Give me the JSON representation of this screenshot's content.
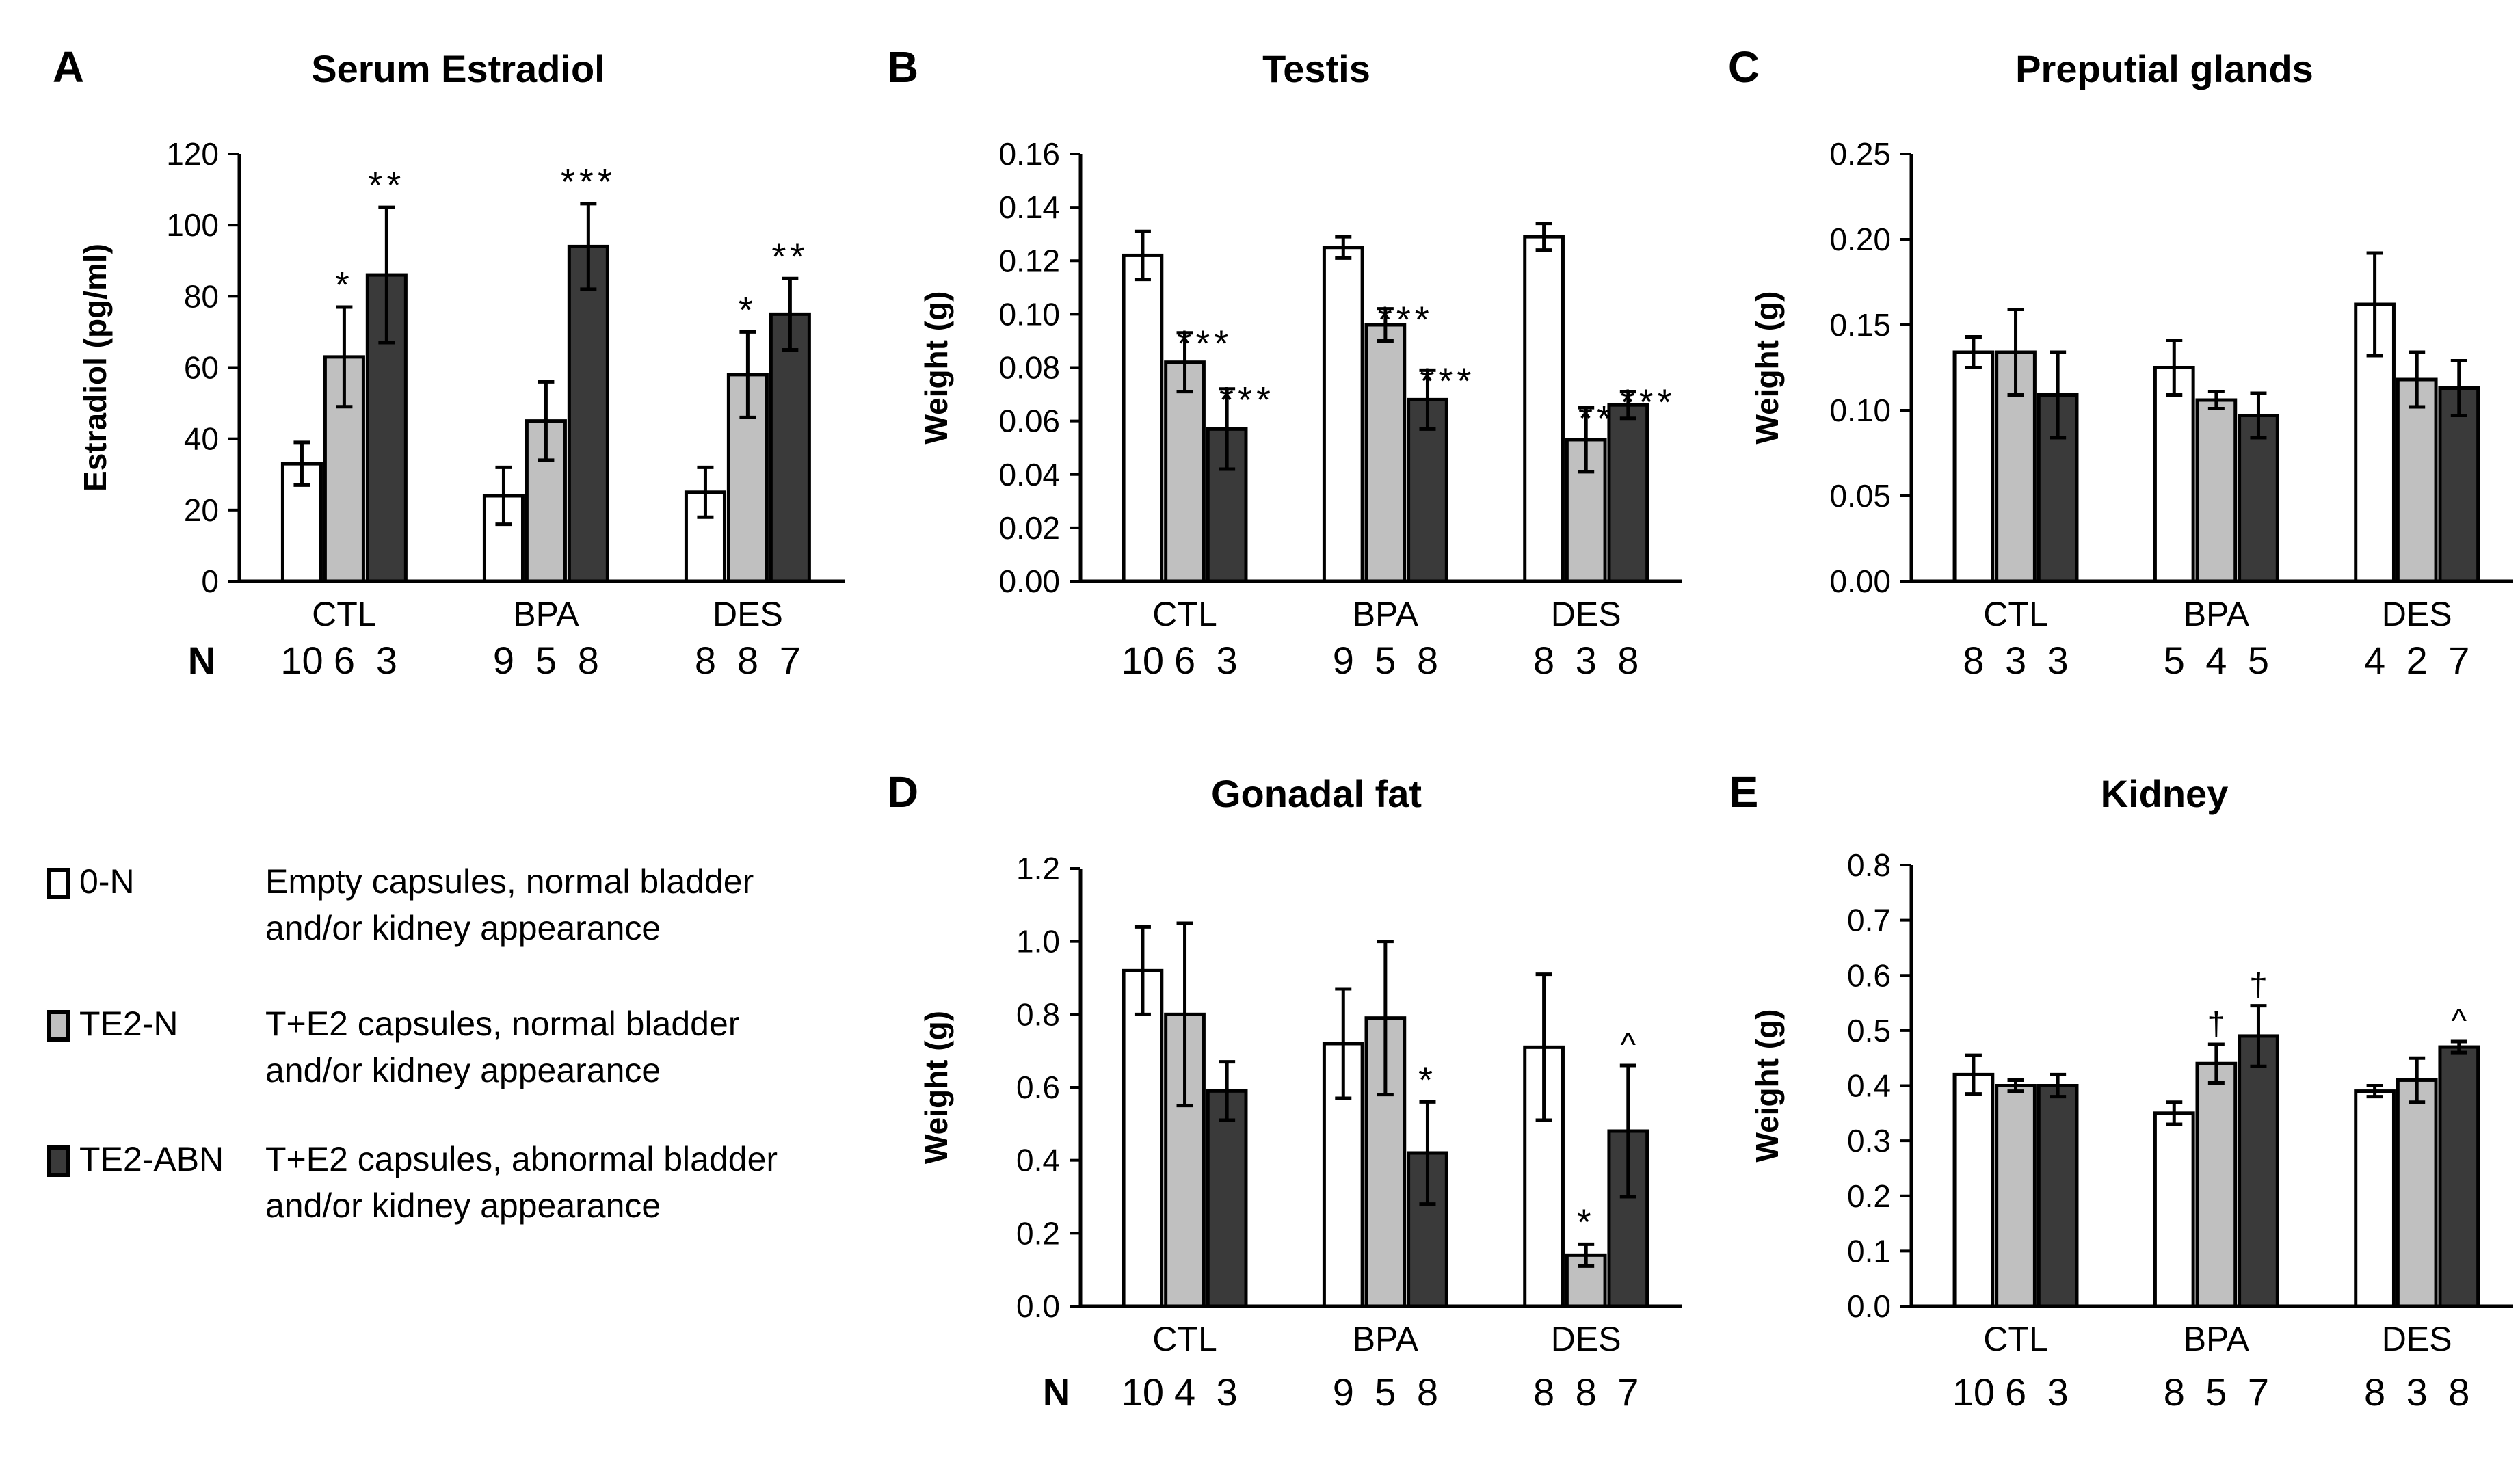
{
  "colors": {
    "zero_n": "#ffffff",
    "te2_n": "#c0c0c0",
    "te2_abn": "#3a3a3a",
    "axis": "#000000"
  },
  "n_row_label": "N",
  "legend": [
    {
      "key": "0-N",
      "color": "#ffffff",
      "description": "Empty capsules, normal bladder\nand/or kidney appearance"
    },
    {
      "key": "TE2-N",
      "color": "#c0c0c0",
      "description": "T+E2 capsules, normal bladder\nand/or kidney appearance"
    },
    {
      "key": "TE2-ABN",
      "color": "#3a3a3a",
      "description": "T+E2 capsules, abnormal bladder\nand/or kidney appearance"
    }
  ],
  "chart_data": [
    {
      "panel": "A",
      "type": "bar",
      "title": "Serum Estradiol",
      "ylabel": "Estradiol (pg/ml)",
      "ylim": [
        0,
        120
      ],
      "yticks": [
        "0",
        "20",
        "40",
        "60",
        "80",
        "100",
        "120"
      ],
      "ytick_values": [
        0,
        20,
        40,
        60,
        80,
        100,
        120
      ],
      "categories": [
        "CTL",
        "BPA",
        "DES"
      ],
      "series": [
        {
          "name": "0-N",
          "values": [
            33,
            24,
            25
          ],
          "errors": [
            6,
            8,
            7
          ],
          "annotations": [
            "",
            "",
            ""
          ]
        },
        {
          "name": "TE2-N",
          "values": [
            63,
            45,
            58
          ],
          "errors": [
            14,
            11,
            12
          ],
          "annotations": [
            "*",
            "",
            "*"
          ]
        },
        {
          "name": "TE2-ABN",
          "values": [
            86,
            94,
            75
          ],
          "errors": [
            19,
            12,
            10
          ],
          "annotations": [
            "**",
            "***",
            "**"
          ]
        }
      ],
      "show_n_label": true,
      "n": [
        [
          "10",
          "6",
          "3"
        ],
        [
          "9",
          "5",
          "8"
        ],
        [
          "8",
          "8",
          "7"
        ]
      ]
    },
    {
      "panel": "B",
      "type": "bar",
      "title": "Testis",
      "ylabel": "Weight (g)",
      "ylim": [
        0,
        0.16
      ],
      "yticks": [
        "0.00",
        "0.02",
        "0.04",
        "0.06",
        "0.08",
        "0.10",
        "0.12",
        "0.14",
        "0.16"
      ],
      "ytick_values": [
        0,
        0.02,
        0.04,
        0.06,
        0.08,
        0.1,
        0.12,
        0.14,
        0.16
      ],
      "categories": [
        "CTL",
        "BPA",
        "DES"
      ],
      "series": [
        {
          "name": "0-N",
          "values": [
            0.122,
            0.125,
            0.129
          ],
          "errors": [
            0.009,
            0.004,
            0.005
          ],
          "annotations": [
            "",
            "",
            ""
          ]
        },
        {
          "name": "TE2-N",
          "values": [
            0.082,
            0.096,
            0.053
          ],
          "errors": [
            0.011,
            0.006,
            0.012
          ],
          "annotations": [
            "***",
            "***",
            "***"
          ]
        },
        {
          "name": "TE2-ABN",
          "values": [
            0.057,
            0.068,
            0.066
          ],
          "errors": [
            0.015,
            0.011,
            0.005
          ],
          "annotations": [
            "***",
            "***",
            "***"
          ]
        }
      ],
      "show_n_label": false,
      "n": [
        [
          "10",
          "6",
          "3"
        ],
        [
          "9",
          "5",
          "8"
        ],
        [
          "8",
          "3",
          "8"
        ]
      ]
    },
    {
      "panel": "C",
      "type": "bar",
      "title": "Preputial glands",
      "ylabel": "Weight (g)",
      "ylim": [
        0,
        0.25
      ],
      "yticks": [
        "0.00",
        "0.05",
        "0.10",
        "0.15",
        "0.20",
        "0.25"
      ],
      "ytick_values": [
        0,
        0.05,
        0.1,
        0.15,
        0.2,
        0.25
      ],
      "categories": [
        "CTL",
        "BPA",
        "DES"
      ],
      "series": [
        {
          "name": "0-N",
          "values": [
            0.134,
            0.125,
            0.162
          ],
          "errors": [
            0.009,
            0.016,
            0.03
          ],
          "annotations": [
            "",
            "",
            ""
          ]
        },
        {
          "name": "TE2-N",
          "values": [
            0.134,
            0.106,
            0.118
          ],
          "errors": [
            0.025,
            0.005,
            0.016
          ],
          "annotations": [
            "",
            "",
            ""
          ]
        },
        {
          "name": "TE2-ABN",
          "values": [
            0.109,
            0.097,
            0.113
          ],
          "errors": [
            0.025,
            0.013,
            0.016
          ],
          "annotations": [
            "",
            "",
            ""
          ]
        }
      ],
      "show_n_label": false,
      "n": [
        [
          "8",
          "3",
          "3"
        ],
        [
          "5",
          "4",
          "5"
        ],
        [
          "4",
          "2",
          "7"
        ]
      ]
    },
    {
      "panel": "D",
      "type": "bar",
      "title": "Gonadal fat",
      "ylabel": "Weight (g)",
      "ylim": [
        0,
        1.2
      ],
      "yticks": [
        "0.0",
        "0.2",
        "0.4",
        "0.6",
        "0.8",
        "1.0",
        "1.2"
      ],
      "ytick_values": [
        0,
        0.2,
        0.4,
        0.6,
        0.8,
        1.0,
        1.2
      ],
      "categories": [
        "CTL",
        "BPA",
        "DES"
      ],
      "series": [
        {
          "name": "0-N",
          "values": [
            0.92,
            0.72,
            0.71
          ],
          "errors": [
            0.12,
            0.15,
            0.2
          ],
          "annotations": [
            "",
            "",
            ""
          ]
        },
        {
          "name": "TE2-N",
          "values": [
            0.8,
            0.79,
            0.14
          ],
          "errors": [
            0.25,
            0.21,
            0.03
          ],
          "annotations": [
            "",
            "",
            "*"
          ]
        },
        {
          "name": "TE2-ABN",
          "values": [
            0.59,
            0.42,
            0.48
          ],
          "errors": [
            0.08,
            0.14,
            0.18
          ],
          "annotations": [
            "",
            "*",
            "^"
          ]
        }
      ],
      "show_n_label": true,
      "n": [
        [
          "10",
          "4",
          "3"
        ],
        [
          "9",
          "5",
          "8"
        ],
        [
          "8",
          "8",
          "7"
        ]
      ]
    },
    {
      "panel": "E",
      "type": "bar",
      "title": "Kidney",
      "ylabel": "Weight (g)",
      "ylim": [
        0,
        0.8
      ],
      "yticks": [
        "0.0",
        "0.1",
        "0.2",
        "0.3",
        "0.4",
        "0.5",
        "0.6",
        "0.7",
        "0.8"
      ],
      "ytick_values": [
        0,
        0.1,
        0.2,
        0.3,
        0.4,
        0.5,
        0.6,
        0.7,
        0.8
      ],
      "categories": [
        "CTL",
        "BPA",
        "DES"
      ],
      "series": [
        {
          "name": "0-N",
          "values": [
            0.42,
            0.35,
            0.39
          ],
          "errors": [
            0.035,
            0.02,
            0.01
          ],
          "annotations": [
            "",
            "",
            ""
          ]
        },
        {
          "name": "TE2-N",
          "values": [
            0.4,
            0.44,
            0.41
          ],
          "errors": [
            0.01,
            0.035,
            0.04
          ],
          "annotations": [
            "",
            "†",
            ""
          ]
        },
        {
          "name": "TE2-ABN",
          "values": [
            0.4,
            0.49,
            0.47
          ],
          "errors": [
            0.02,
            0.055,
            0.01
          ],
          "annotations": [
            "",
            "†",
            "^"
          ]
        }
      ],
      "show_n_label": false,
      "n": [
        [
          "10",
          "6",
          "3"
        ],
        [
          "8",
          "5",
          "7"
        ],
        [
          "8",
          "3",
          "8"
        ]
      ]
    }
  ]
}
